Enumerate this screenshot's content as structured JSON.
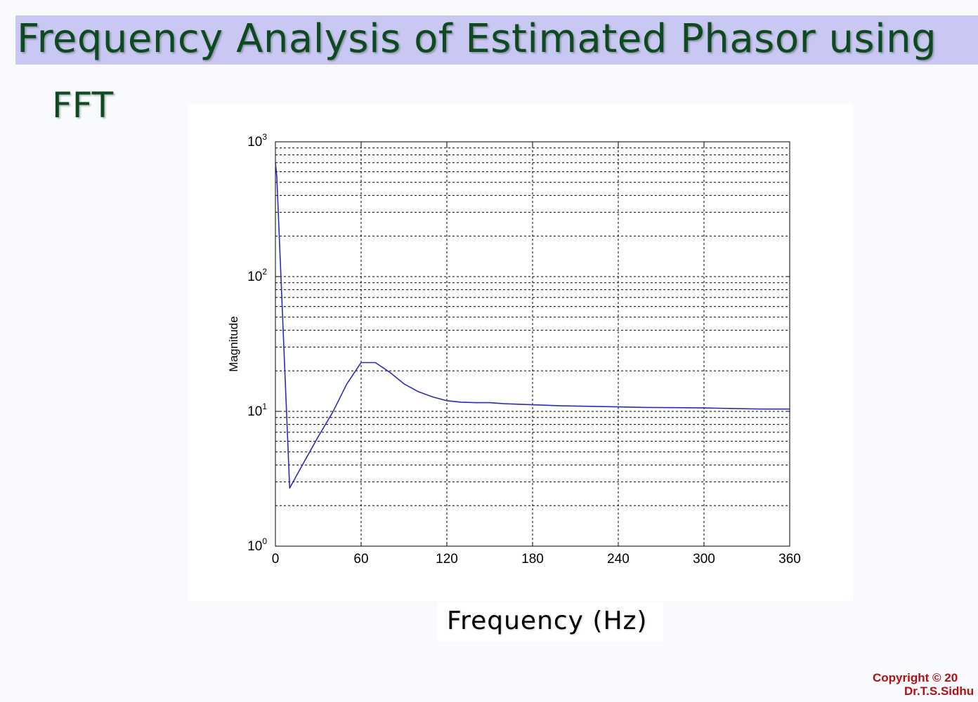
{
  "slide": {
    "title_line1": "Frequency Analysis of Estimated Phasor using",
    "title_line2": "FFT",
    "xlabel": "Frequency (Hz)",
    "copyright_line1": "Copyright © 20",
    "copyright_line2": "Dr.T.S.Sidhu"
  },
  "colors": {
    "title_text": "#0e4a1f",
    "title_band": "#c8c8f2",
    "series_line": "#2b2bb8",
    "copyright_text": "#b01010"
  },
  "chart_data": {
    "type": "line",
    "ylabel": "Magnitude",
    "x_scale": "linear",
    "y_scale": "log",
    "xlim": [
      0,
      360
    ],
    "ylim": [
      1,
      1000
    ],
    "x_ticks": [
      0,
      60,
      120,
      180,
      240,
      300,
      360
    ],
    "y_ticks": [
      {
        "value": 1,
        "base": "10",
        "exp": "0"
      },
      {
        "value": 10,
        "base": "10",
        "exp": "1"
      },
      {
        "value": 100,
        "base": "10",
        "exp": "2"
      },
      {
        "value": 1000,
        "base": "10",
        "exp": "3"
      }
    ],
    "grid": true,
    "series": [
      {
        "x": [
          0,
          1,
          10,
          20,
          30,
          40,
          50,
          60,
          70,
          80,
          90,
          100,
          110,
          120,
          130,
          140,
          150,
          160,
          170,
          180,
          190,
          200,
          220,
          240,
          260,
          280,
          300,
          320,
          340,
          360
        ],
        "y": [
          700,
          550,
          2.7,
          4.2,
          6.5,
          9.8,
          16,
          23,
          23,
          19.5,
          16,
          14,
          12.8,
          12,
          11.7,
          11.6,
          11.6,
          11.4,
          11.3,
          11.2,
          11.1,
          11.0,
          10.9,
          10.8,
          10.7,
          10.65,
          10.6,
          10.5,
          10.4,
          10.4
        ]
      }
    ]
  }
}
